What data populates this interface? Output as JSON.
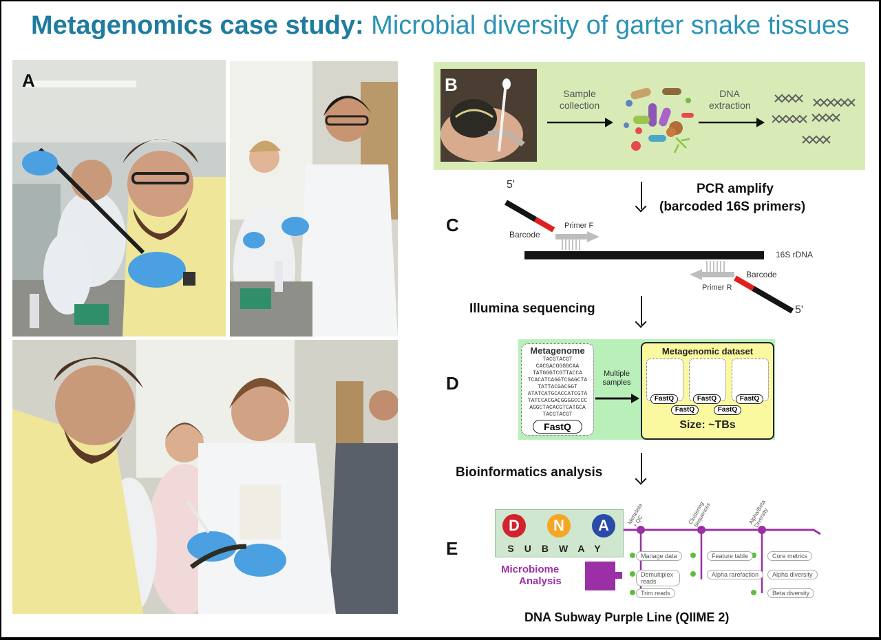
{
  "title": {
    "bold": "Metagenomics case study:",
    "light": "Microbial diversity of garter snake tissues"
  },
  "panels": {
    "a": "A",
    "b": "B",
    "c": "C",
    "d": "D",
    "e": "E"
  },
  "panel_b": {
    "sample_collection": "Sample collection",
    "dna_extraction": "DNA extraction"
  },
  "panel_c": {
    "step_label": "PCR amplify",
    "step_sub": "(barcoded 16S primers)",
    "five_prime": "5'",
    "barcode": "Barcode",
    "primer_f": "Primer F",
    "rdna": "16S rDNA",
    "primer_r": "Primer R"
  },
  "illumina": "Illumina sequencing",
  "panel_d": {
    "metagenome": "Metagenome",
    "sequences": [
      "TACGTACGT",
      "CACGACGGGGCAA",
      "TATGGGTCGTTACCA",
      "TCACATCAGGTCGAGCTA",
      "TATTACGACGGT",
      "ATATCATGCACCATCGTA",
      "TATCCACGACGGGGCCCC",
      "AGGCTACACGTCATGCA",
      "TACGTACGT"
    ],
    "fastq": "FastQ",
    "multiple_samples": "Multiple samples",
    "dataset": "Metagenomic dataset",
    "size": "Size: ~TBs"
  },
  "bioinformatics": "Bioinformatics analysis",
  "panel_e": {
    "letters": [
      "D",
      "N",
      "A"
    ],
    "subway": "SUBWAY",
    "microbiome": "Microbiome",
    "analysis": "Analysis",
    "line_headers": [
      "Metadata + QC",
      "Clustering Sequences",
      "Alpha/Beta Diversity"
    ],
    "stations": [
      [
        "Manage data",
        "Demultiplex reads",
        "Trim reads"
      ],
      [
        "Feature table",
        "Alpha rarefaction"
      ],
      [
        "Core metrics",
        "Alpha diversity",
        "Beta diversity"
      ]
    ],
    "caption": "DNA Subway Purple Line (QIIME 2)"
  },
  "colors": {
    "title": "#1f7c9e",
    "subway_line": "#9b2fa6",
    "panel_b_bg": "#d8ebb6",
    "panel_d_bg": "#b9efb9",
    "dataset_bg": "#fbf9a0",
    "barcode": "#e02020"
  }
}
